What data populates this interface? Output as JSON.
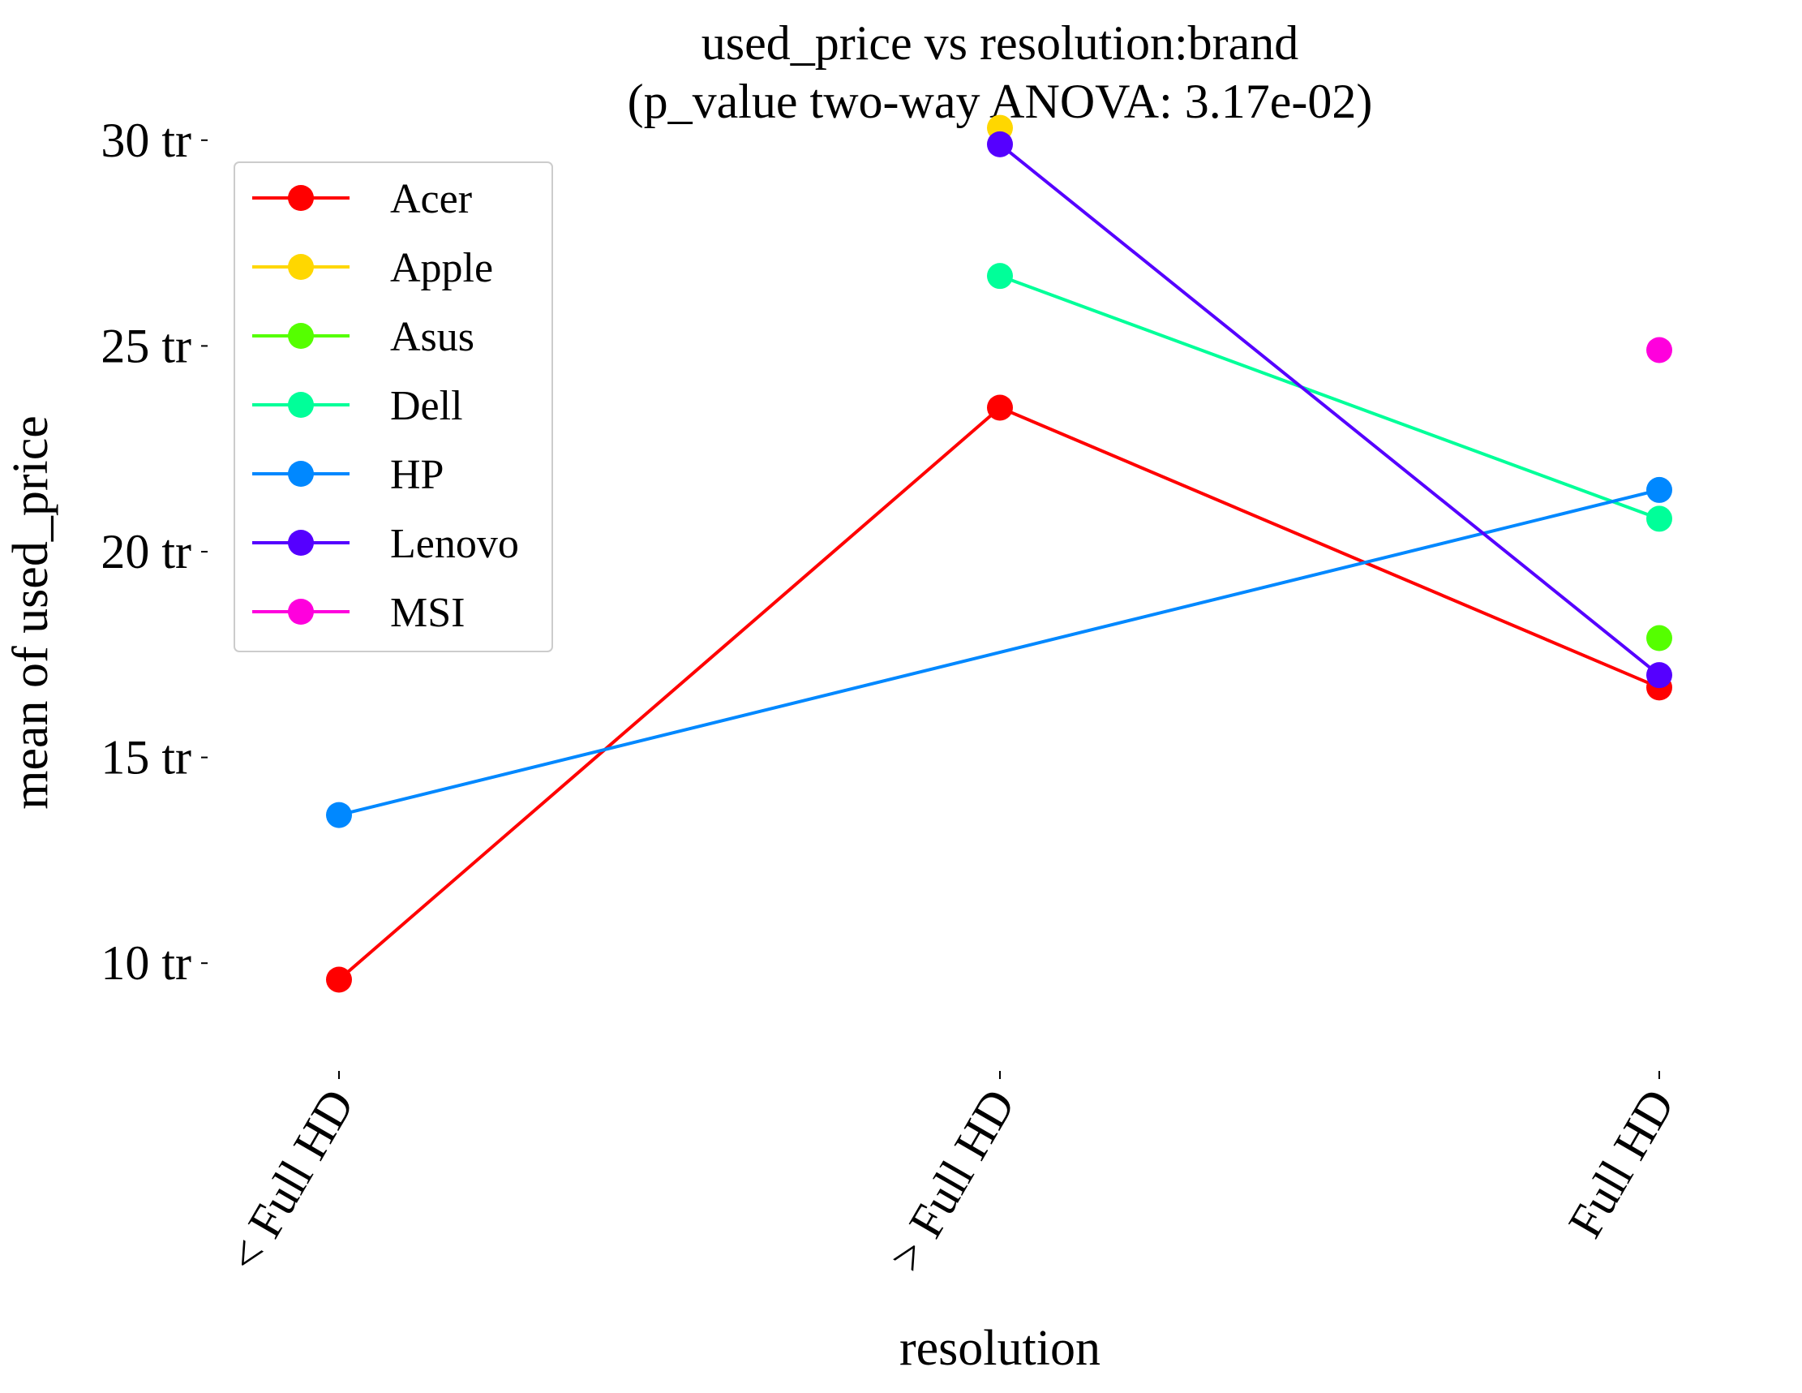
{
  "chart_data": {
    "type": "line",
    "title": "used_price vs resolution:brand",
    "subtitle": "(p_value two-way ANOVA: 3.17e-02)",
    "xlabel": "resolution",
    "ylabel": "mean of used_price",
    "categories": [
      "< Full HD",
      "> Full HD",
      "Full HD"
    ],
    "ylim": [
      7.5,
      32.5
    ],
    "yticks": [
      {
        "value": 10,
        "label": "10 tr"
      },
      {
        "value": 15,
        "label": "15 tr"
      },
      {
        "value": 20,
        "label": "20 tr"
      },
      {
        "value": 25,
        "label": "25 tr"
      },
      {
        "value": 30,
        "label": "30 tr"
      }
    ],
    "grid": false,
    "legend_position": "top-left",
    "series": [
      {
        "name": "Acer",
        "color": "#ff0000",
        "values": [
          9.6,
          23.5,
          16.7
        ]
      },
      {
        "name": "Apple",
        "color": "#ffd700",
        "values": [
          null,
          30.3,
          null
        ]
      },
      {
        "name": "Asus",
        "color": "#55ff00",
        "values": [
          null,
          null,
          17.9
        ]
      },
      {
        "name": "Dell",
        "color": "#00ff99",
        "values": [
          null,
          26.7,
          20.8
        ]
      },
      {
        "name": "HP",
        "color": "#0088ff",
        "values": [
          13.6,
          null,
          21.5
        ]
      },
      {
        "name": "Lenovo",
        "color": "#5500ff",
        "values": [
          null,
          29.9,
          17.0
        ]
      },
      {
        "name": "MSI",
        "color": "#ff00dd",
        "values": [
          null,
          null,
          24.9
        ]
      }
    ]
  }
}
